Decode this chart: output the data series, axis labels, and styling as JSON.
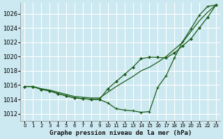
{
  "title": "Graphe pression niveau de la mer (hPa)",
  "background_color": "#cce8f0",
  "grid_color": "#ffffff",
  "line_color": "#1a5c1a",
  "xlim": [
    -0.5,
    23.5
  ],
  "ylim": [
    1011.0,
    1027.5
  ],
  "yticks": [
    1012,
    1014,
    1016,
    1018,
    1020,
    1022,
    1024,
    1026
  ],
  "xticks": [
    0,
    1,
    2,
    3,
    4,
    5,
    6,
    7,
    8,
    9,
    10,
    11,
    12,
    13,
    14,
    15,
    16,
    17,
    18,
    19,
    20,
    21,
    22,
    23
  ],
  "line1_nomarker": {
    "x": [
      0,
      1,
      2,
      3,
      4,
      5,
      6,
      7,
      8,
      9,
      10,
      11,
      12,
      13,
      14,
      15,
      16,
      17,
      18,
      19,
      20,
      21,
      22,
      23
    ],
    "y": [
      1015.8,
      1015.8,
      1015.5,
      1015.3,
      1015.0,
      1014.7,
      1014.4,
      1014.3,
      1014.2,
      1014.2,
      1015.0,
      1015.8,
      1016.5,
      1017.2,
      1018.0,
      1018.5,
      1019.2,
      1020.0,
      1021.0,
      1022.0,
      1023.5,
      1025.0,
      1026.2,
      1027.2
    ]
  },
  "line2_plus": {
    "x": [
      0,
      1,
      2,
      3,
      4,
      5,
      6,
      7,
      8,
      9,
      10,
      11,
      12,
      13,
      14,
      15,
      16,
      17,
      18,
      19,
      20,
      21,
      22,
      23
    ],
    "y": [
      1015.8,
      1015.8,
      1015.4,
      1015.2,
      1014.8,
      1014.5,
      1014.2,
      1014.1,
      1014.0,
      1014.0,
      1013.5,
      1012.7,
      1012.5,
      1012.4,
      1012.2,
      1012.3,
      1015.7,
      1017.3,
      1019.8,
      1022.1,
      1023.9,
      1025.8,
      1027.0,
      1027.2
    ]
  },
  "line3_diamond": {
    "x": [
      0,
      1,
      2,
      3,
      4,
      5,
      6,
      7,
      8,
      9,
      10,
      11,
      12,
      13,
      14,
      15,
      16,
      17,
      18,
      19,
      20,
      21,
      22,
      23
    ],
    "y": [
      1015.8,
      1015.8,
      1015.4,
      1015.2,
      1014.8,
      1014.5,
      1014.2,
      1014.1,
      1014.0,
      1014.0,
      1015.5,
      1016.5,
      1017.5,
      1018.5,
      1019.7,
      1019.9,
      1019.9,
      1019.8,
      1020.5,
      1021.5,
      1022.5,
      1024.0,
      1025.5,
      1027.2
    ]
  }
}
